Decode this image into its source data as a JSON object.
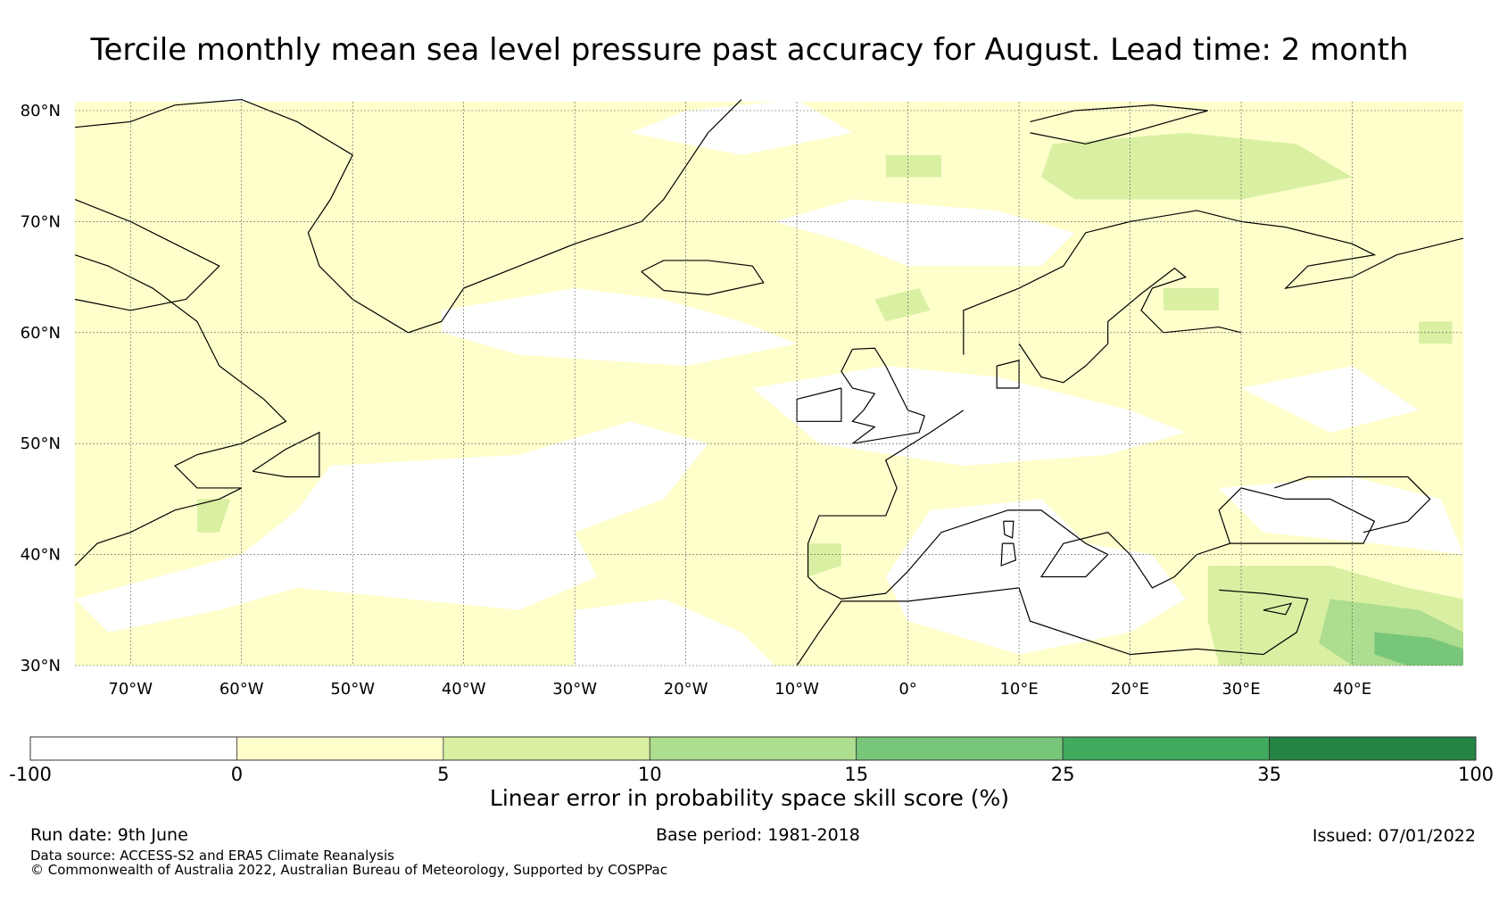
{
  "title": "Tercile monthly mean sea level pressure past accuracy for August. Lead time: 2 month",
  "map": {
    "lat_labels": [
      "80°N",
      "70°N",
      "60°N",
      "50°N",
      "40°N",
      "30°N"
    ],
    "lat_values": [
      80,
      70,
      60,
      50,
      40,
      30
    ],
    "lon_labels": [
      "70°W",
      "60°W",
      "50°W",
      "40°W",
      "30°W",
      "20°W",
      "10°W",
      "0°",
      "10°E",
      "20°E",
      "30°E",
      "40°E"
    ],
    "lon_values": [
      -70,
      -60,
      -50,
      -40,
      -30,
      -20,
      -10,
      0,
      10,
      20,
      30,
      40
    ],
    "lon_range": [
      -75,
      50
    ],
    "lat_range": [
      30,
      81
    ],
    "grid": true
  },
  "colorbar": {
    "ticks": [
      "-100",
      "0",
      "5",
      "10",
      "15",
      "25",
      "35",
      "100"
    ],
    "colors": [
      "#ffffff",
      "#ffffcc",
      "#d9f0a3",
      "#addd8e",
      "#78c679",
      "#41ab5d",
      "#238443"
    ],
    "label": "Linear error in probability space skill score (%)"
  },
  "footer": {
    "run_date": "Run date: 9th June",
    "base_period": "Base period: 1981-2018",
    "issued": "Issued: 07/01/2022",
    "data_source": "Data source: ACCESS-S2 and ERA5 Climate Reanalysis",
    "copyright": "© Commonwealth of Australia 2022, Australian Bureau of Meteorology, Supported by COSPPac"
  }
}
